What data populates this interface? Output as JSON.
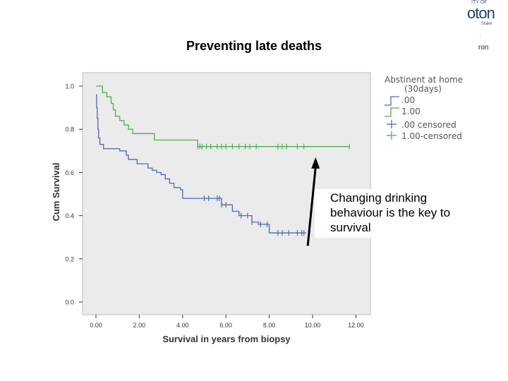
{
  "header": {
    "title": "Preventing late deaths",
    "logo_lines": [
      "ITY OF",
      "oton",
      "Stake",
      ":",
      "ron"
    ]
  },
  "chart_data": {
    "type": "line",
    "title": "Preventing late deaths",
    "xlabel": "Survival in years from biopsy",
    "ylabel": "Cum Survival",
    "xlim": [
      -0.5,
      12.8
    ],
    "ylim": [
      -0.03,
      1.06
    ],
    "xticks": [
      0,
      2,
      4,
      6,
      8,
      10,
      12
    ],
    "xtick_labels": [
      "0.00",
      "2.00",
      "4.00",
      "6.00",
      "8.00",
      "10.00",
      "12.00"
    ],
    "yticks": [
      0.0,
      0.2,
      0.4,
      0.6,
      0.8,
      1.0
    ],
    "ytick_labels": [
      "0.0",
      "0.2",
      "0.4",
      "0.6",
      "0.8",
      "1.0"
    ],
    "grid": false,
    "legend": {
      "title": "Abstinent at home (30days)",
      "placement": "top-right",
      "entries": [
        ".00",
        "1.00",
        ".00 censored",
        "1.00-censored"
      ]
    },
    "series": [
      {
        "name": ".00",
        "color": "#4a6bb5",
        "steps": [
          [
            0.0,
            0.96
          ],
          [
            0.03,
            0.9
          ],
          [
            0.06,
            0.85
          ],
          [
            0.09,
            0.8
          ],
          [
            0.12,
            0.76
          ],
          [
            0.18,
            0.73
          ],
          [
            0.35,
            0.71
          ],
          [
            1.1,
            0.7
          ],
          [
            1.4,
            0.68
          ],
          [
            1.5,
            0.66
          ],
          [
            1.9,
            0.64
          ],
          [
            2.4,
            0.62
          ],
          [
            2.6,
            0.61
          ],
          [
            2.8,
            0.6
          ],
          [
            3.0,
            0.59
          ],
          [
            3.2,
            0.57
          ],
          [
            3.4,
            0.55
          ],
          [
            3.6,
            0.53
          ],
          [
            3.9,
            0.52
          ],
          [
            4.0,
            0.5
          ],
          [
            4.0,
            0.48
          ],
          [
            5.8,
            0.45
          ],
          [
            6.3,
            0.42
          ],
          [
            6.6,
            0.4
          ],
          [
            7.2,
            0.37
          ],
          [
            7.5,
            0.36
          ],
          [
            8.0,
            0.34
          ],
          [
            8.0,
            0.32
          ],
          [
            9.7,
            0.32
          ]
        ],
        "censored": [
          5.0,
          5.2,
          5.6,
          5.7,
          5.8,
          6.0,
          6.7,
          7.0,
          7.2,
          7.6,
          7.9,
          8.4,
          8.6,
          8.9,
          9.3,
          9.5,
          9.6
        ]
      },
      {
        "name": "1.00",
        "color": "#4caf50",
        "steps": [
          [
            0.0,
            1.0
          ],
          [
            0.3,
            0.97
          ],
          [
            0.5,
            0.95
          ],
          [
            0.7,
            0.92
          ],
          [
            0.8,
            0.89
          ],
          [
            0.9,
            0.86
          ],
          [
            1.1,
            0.84
          ],
          [
            1.3,
            0.82
          ],
          [
            1.5,
            0.8
          ],
          [
            1.7,
            0.78
          ],
          [
            2.7,
            0.75
          ],
          [
            4.7,
            0.72
          ],
          [
            11.7,
            0.72
          ]
        ],
        "censored": [
          4.7,
          4.8,
          4.9,
          5.1,
          5.3,
          5.6,
          5.8,
          6.0,
          6.3,
          6.6,
          6.9,
          7.1,
          7.4,
          8.4,
          8.6,
          8.8,
          9.3,
          9.6,
          11.7
        ]
      }
    ],
    "annotation": {
      "text": "Changing drinking behaviour is the key to survival",
      "arrow_from": [
        10.2,
        0.26
      ],
      "arrow_to": [
        10.4,
        0.69
      ]
    }
  }
}
